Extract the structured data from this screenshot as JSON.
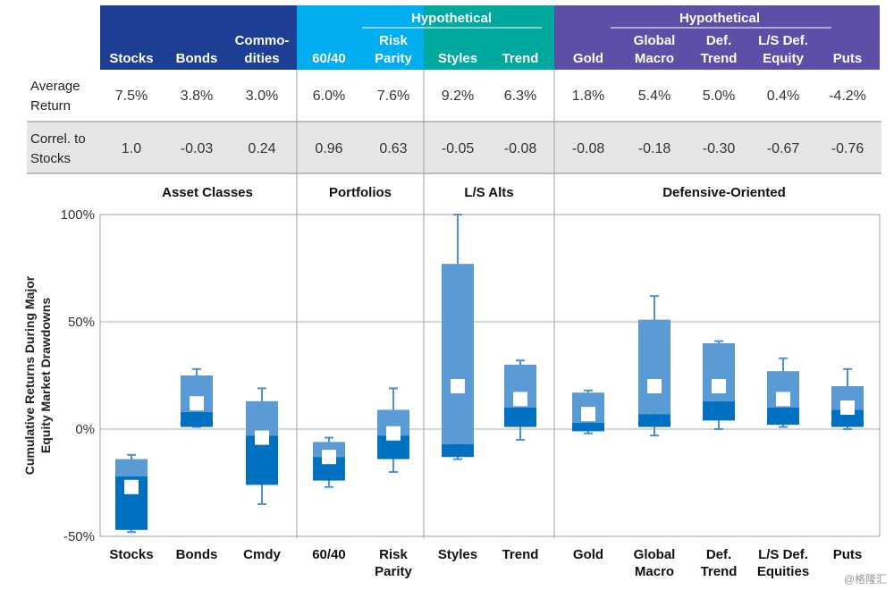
{
  "table": {
    "groups": [
      {
        "label": "Hypothetical",
        "color": "#00a99d"
      },
      {
        "label": "Hypothetical",
        "color": "#5b4fa8"
      }
    ],
    "columns": [
      [
        "Stocks"
      ],
      [
        "Bonds"
      ],
      [
        "Commo-",
        "dities"
      ],
      [
        "60/40"
      ],
      [
        "Risk",
        "Parity"
      ],
      [
        "Styles"
      ],
      [
        "Trend"
      ],
      [
        "Gold"
      ],
      [
        "Global",
        "Macro"
      ],
      [
        "Def.",
        "Trend"
      ],
      [
        "L/S Def.",
        "Equity"
      ],
      [
        "Puts"
      ]
    ],
    "row_labels": [
      [
        "Average",
        "Return"
      ],
      [
        "Correl. to",
        "Stocks"
      ]
    ],
    "avg_return": [
      "7.5%",
      "3.8%",
      "3.0%",
      "6.0%",
      "7.6%",
      "9.2%",
      "6.3%",
      "1.8%",
      "5.4%",
      "5.0%",
      "0.4%",
      "-4.2%"
    ],
    "correl": [
      "1.0",
      "-0.03",
      "0.24",
      "0.96",
      "0.63",
      "-0.05",
      "-0.08",
      "-0.08",
      "-0.18",
      "-0.30",
      "-0.67",
      "-0.76"
    ],
    "colors": {
      "blue_dark": "#1c3f94",
      "cyan": "#00aeef",
      "teal": "#00a99d",
      "purple": "#5b4fa8",
      "row_shade": "#e6e6e6"
    }
  },
  "chart_data": {
    "type": "box",
    "sections": [
      "Asset Classes",
      "Portfolios",
      "L/S Alts",
      "Defensive-Oriented"
    ],
    "categories": [
      [
        "Stocks"
      ],
      [
        "Bonds"
      ],
      [
        "Cmdy"
      ],
      [
        "60/40"
      ],
      [
        "Risk",
        "Parity"
      ],
      [
        "Styles"
      ],
      [
        "Trend"
      ],
      [
        "Gold"
      ],
      [
        "Global",
        "Macro"
      ],
      [
        "Def.",
        "Trend"
      ],
      [
        "L/S Def.",
        "Equities"
      ],
      [
        "Puts"
      ]
    ],
    "min": [
      -48,
      1,
      -35,
      -27,
      -20,
      -14,
      -5,
      -2,
      -3,
      0,
      1,
      0
    ],
    "q1": [
      -47,
      1,
      -26,
      -24,
      -14,
      -13,
      1,
      -1,
      1,
      4,
      2,
      1
    ],
    "median": [
      -22,
      8,
      -3,
      -13,
      -3,
      -7,
      10,
      3,
      7,
      13,
      10,
      9
    ],
    "q3": [
      -14,
      25,
      13,
      -6,
      9,
      77,
      30,
      17,
      51,
      40,
      27,
      20
    ],
    "max": [
      -12,
      28,
      19,
      -4,
      19,
      100,
      32,
      18,
      62,
      41,
      33,
      28
    ],
    "mean": [
      -27,
      12,
      -4,
      -13,
      -2,
      20,
      14,
      7,
      20,
      20,
      14,
      10
    ],
    "ylabel": [
      "Cumulative Returns During Major",
      "Equity Market Drawdowns"
    ],
    "ylim": [
      -50,
      100
    ],
    "yticks": [
      "100%",
      "50%",
      "0%",
      "-50%"
    ],
    "colors": {
      "upper": "#5b9bd5",
      "lower": "#0070c0",
      "whisker": "#4a90d9",
      "mean_marker": "#ffffff"
    }
  },
  "watermark": "@格隆汇"
}
